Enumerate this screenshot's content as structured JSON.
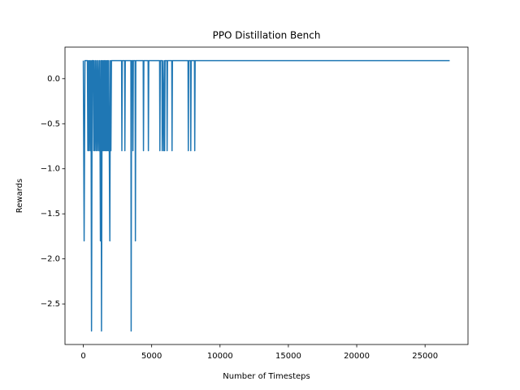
{
  "chart_data": {
    "type": "line",
    "title": "PPO Distillation Bench",
    "x_label": "Number of Timesteps",
    "y_label": "Rewards",
    "series": [
      {
        "name": null,
        "color": "#1f77b4",
        "x": [
          0,
          60,
          120,
          300,
          330,
          380,
          420,
          470,
          520,
          560,
          600,
          650,
          720,
          760,
          800,
          850,
          900,
          950,
          1000,
          1050,
          1100,
          1150,
          1200,
          1250,
          1300,
          1330,
          1380,
          1420,
          1460,
          1500,
          1540,
          1580,
          1620,
          1660,
          1700,
          1740,
          1780,
          1820,
          1860,
          1900,
          1940,
          1980,
          2020,
          2060,
          2800,
          2820,
          2850,
          3020,
          3040,
          3070,
          3480,
          3500,
          3530,
          3610,
          3630,
          3660,
          3790,
          3810,
          3840,
          4380,
          4400,
          4430,
          4740,
          4760,
          4790,
          5580,
          5600,
          5630,
          5750,
          5770,
          5800,
          5880,
          5920,
          5950,
          5980,
          6110,
          6130,
          6160,
          6470,
          6490,
          6520,
          7660,
          7680,
          7710,
          7840,
          7860,
          7890,
          8130,
          8150,
          8180,
          26800
        ],
        "values": [
          0.2,
          -1.8,
          0.2,
          0.2,
          -0.8,
          0.2,
          -0.8,
          0.2,
          -0.8,
          0.2,
          -2.8,
          0.2,
          0.2,
          -0.8,
          0.2,
          -0.8,
          0.2,
          -0.8,
          0.2,
          -0.8,
          0.2,
          -0.8,
          0.2,
          -1.8,
          0.2,
          -2.8,
          0.2,
          -0.8,
          0.2,
          -0.8,
          0.2,
          -0.8,
          0.2,
          -0.8,
          0.2,
          -0.8,
          0.2,
          -0.8,
          0.2,
          -0.8,
          -1.8,
          0.2,
          -0.8,
          0.2,
          0.2,
          -0.8,
          0.2,
          0.2,
          -0.8,
          0.2,
          0.2,
          -2.8,
          0.2,
          0.2,
          -0.8,
          0.2,
          0.2,
          -1.8,
          0.2,
          0.2,
          -0.8,
          0.2,
          0.2,
          -0.8,
          0.2,
          0.2,
          -0.8,
          0.2,
          0.2,
          -0.8,
          0.2,
          -0.8,
          0.2,
          -0.8,
          0.2,
          0.2,
          -0.8,
          0.2,
          0.2,
          -0.8,
          0.2,
          0.2,
          -0.8,
          0.2,
          0.2,
          -0.8,
          0.2,
          0.2,
          -0.8,
          0.2,
          0.2
        ]
      }
    ],
    "xlim": [
      -1340,
      28140
    ],
    "xticks": [
      0,
      5000,
      10000,
      15000,
      20000,
      25000
    ],
    "ylim": [
      -2.95,
      0.35
    ],
    "yticks": [
      {
        "value": -2.5,
        "label": "−2.5"
      },
      {
        "value": -2.0,
        "label": "−2.0"
      },
      {
        "value": -1.5,
        "label": "−1.5"
      },
      {
        "value": -1.0,
        "label": "−1.0"
      },
      {
        "value": -0.5,
        "label": "−0.5"
      },
      {
        "value": 0,
        "label": "0.0"
      }
    ],
    "grid": false
  }
}
